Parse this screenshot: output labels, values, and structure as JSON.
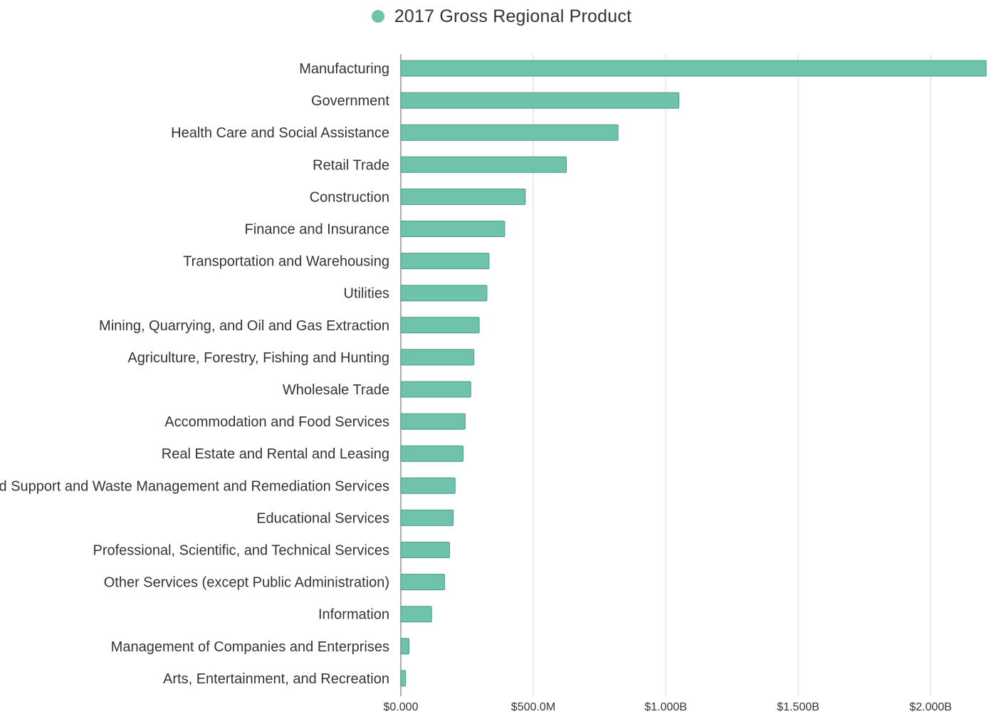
{
  "chart_data": {
    "type": "bar",
    "orientation": "horizontal",
    "categories": [
      "Manufacturing",
      "Government",
      "Health Care and Social Assistance",
      "Retail Trade",
      "Construction",
      "Finance and Insurance",
      "Transportation and Warehousing",
      "Utilities",
      "Mining, Quarrying, and Oil and Gas Extraction",
      "Agriculture, Forestry, Fishing and Hunting",
      "Wholesale Trade",
      "Accommodation and Food Services",
      "Real Estate and Rental and Leasing",
      "Administrative and Support and Waste Management and Remediation Services",
      "Educational Services",
      "Professional, Scientific, and Technical Services",
      "Other Services (except Public Administration)",
      "Information",
      "Management of Companies and Enterprises",
      "Arts, Entertainment, and Recreation"
    ],
    "series": [
      {
        "name": "2017 Gross Regional Product",
        "color": "#6fc3ac",
        "values": [
          2210000000,
          1050000000,
          820000000,
          625000000,
          470000000,
          392000000,
          333000000,
          325000000,
          296000000,
          276000000,
          264000000,
          243000000,
          235000000,
          205000000,
          198000000,
          184000000,
          165000000,
          116000000,
          31000000,
          18000000
        ]
      }
    ],
    "xlim": [
      0,
      2220000000
    ],
    "xticks": [
      0,
      500000000,
      1000000000,
      1500000000,
      2000000000
    ],
    "xtick_labels": [
      "$0.000",
      "$500.0M",
      "$1.000B",
      "$1.500B",
      "$2.000B"
    ],
    "grid": true,
    "legend_position": "top-center",
    "bar_border_color": "#4a9c85",
    "grid_color": "#d9d9d9",
    "axis_color": "#9a9a9a",
    "text_color": "#333333"
  }
}
